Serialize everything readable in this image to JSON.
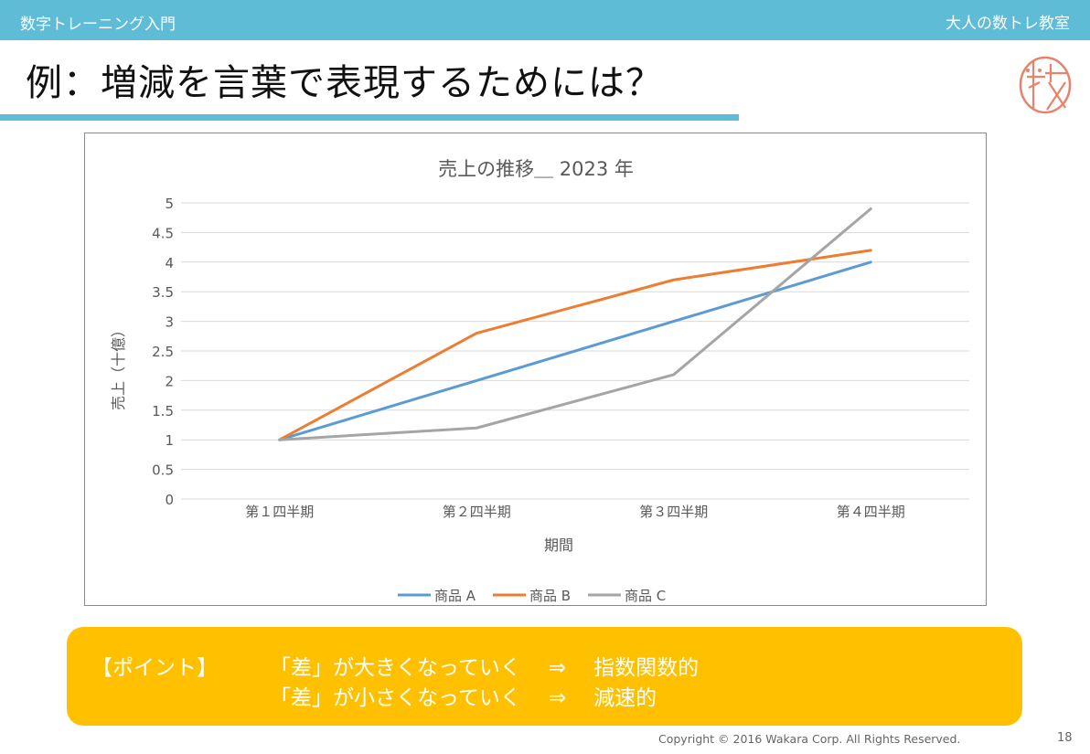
{
  "header": {
    "course_title": "数字トレーニング入門",
    "school_name": "大人の数トレ教室"
  },
  "slide": {
    "title": "例：増減を言葉で表現するためには？"
  },
  "colors": {
    "accent": "#5ebcd6",
    "point_box": "#ffc000",
    "logo": "#e8826a",
    "series_a": "#5b9bd5",
    "series_b": "#ed7d31",
    "series_c": "#a5a5a5"
  },
  "chart_data": {
    "type": "line",
    "title": "売上の推移＿ 2023 年",
    "xlabel": "期間",
    "ylabel": "売上（十億）",
    "categories": [
      "第１四半期",
      "第２四半期",
      "第３四半期",
      "第４四半期"
    ],
    "y_ticks": [
      "0",
      "0.5",
      "1",
      "1.5",
      "2",
      "2.5",
      "3",
      "3.5",
      "4",
      "4.5",
      "5"
    ],
    "ylim": [
      0,
      5
    ],
    "grid": true,
    "legend_position": "bottom",
    "series": [
      {
        "name": "商品 A",
        "color": "#5b9bd5",
        "values": [
          1,
          2,
          3,
          4
        ]
      },
      {
        "name": "商品 B",
        "color": "#ed7d31",
        "values": [
          1,
          2.8,
          3.7,
          4.2
        ]
      },
      {
        "name": "商品 C",
        "color": "#a5a5a5",
        "values": [
          1,
          1.2,
          2.1,
          4.9
        ]
      }
    ]
  },
  "point": {
    "label": "【ポイント】",
    "lines": [
      {
        "cause": "「差」が大きくなっていく",
        "arrow": "⇒",
        "result": "指数関数的"
      },
      {
        "cause": "「差」が小さくなっていく",
        "arrow": "⇒",
        "result": "減速的"
      }
    ]
  },
  "footer": {
    "copyright": "Copyright © 2016 Wakara Corp. All Rights Reserved.",
    "page_number": "18"
  }
}
